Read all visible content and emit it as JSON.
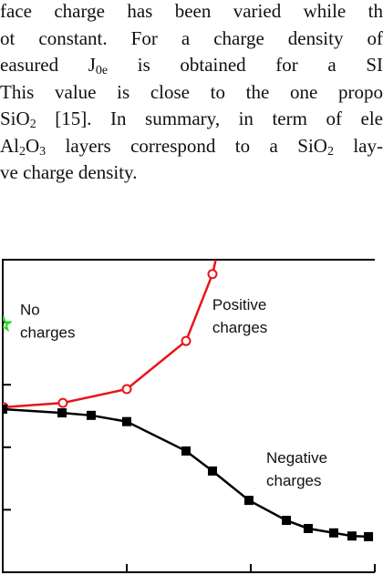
{
  "text_lines": [
    [
      "face charge has been varied while th"
    ],
    [
      "ot constant. For a charge density of"
    ],
    [
      "easured J",
      "0e",
      " is obtained for a SI"
    ],
    [
      " This value is close to the one propo"
    ],
    [
      "SiO",
      "2",
      " [15]. In summary, in term of ele"
    ],
    [
      "Al",
      "2",
      "O",
      "3",
      " layers correspond to a SiO",
      "2",
      " lay-"
    ],
    [
      "ve charge density."
    ]
  ],
  "chart_data": {
    "type": "line",
    "xlim": [
      0,
      3
    ],
    "ylim": [
      0,
      5
    ],
    "xticks": [
      1,
      2,
      3
    ],
    "yticks": [
      1,
      2,
      3,
      4
    ],
    "series": [
      {
        "color": "#e8141b",
        "marker": "open-circle",
        "x": [
          0.007,
          0.485,
          1.0,
          1.478,
          1.691,
          1.73
        ],
        "values": [
          2.64,
          2.71,
          2.93,
          3.7,
          4.77,
          5.1
        ]
      },
      {
        "color": "#000000",
        "marker": "square",
        "x": [
          0,
          0.478,
          0.713,
          1.0,
          1.478,
          1.691,
          1.985,
          2.287,
          2.463,
          2.669,
          2.816,
          2.949
        ],
        "values": [
          2.61,
          2.55,
          2.51,
          2.41,
          1.94,
          1.62,
          1.15,
          0.83,
          0.7,
          0.63,
          0.58,
          0.57
        ]
      },
      {
        "color": "#22dd22",
        "marker": "star",
        "x": [
          0.007
        ],
        "values": [
          3.97
        ]
      }
    ],
    "annotations": [
      {
        "lines": [
          "No",
          "charges"
        ],
        "x": 0.14,
        "y": 4.12
      },
      {
        "lines": [
          "Positive",
          "charges"
        ],
        "x": 1.69,
        "y": 4.2
      },
      {
        "lines": [
          "Negative",
          "charges"
        ],
        "x": 2.125,
        "y": 1.75
      }
    ]
  }
}
